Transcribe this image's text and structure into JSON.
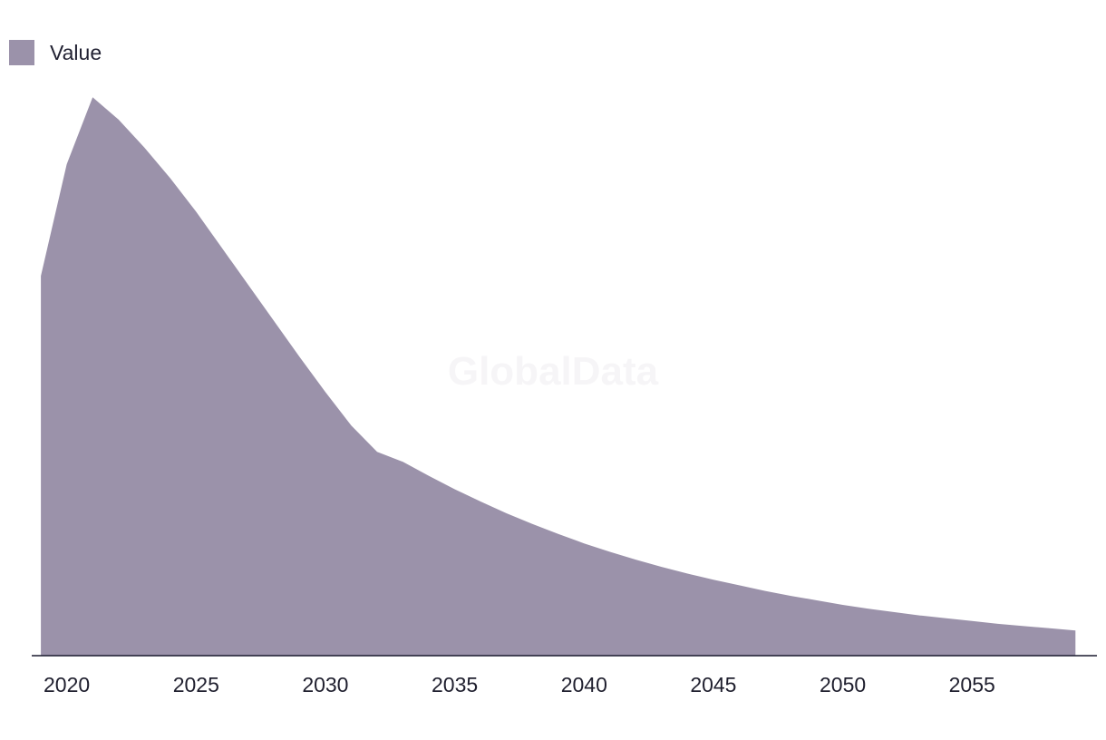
{
  "chart_data": {
    "type": "area",
    "series": [
      {
        "name": "Value",
        "color": "#9b92aa",
        "x": [
          2019,
          2020,
          2021,
          2022,
          2023,
          2024,
          2025,
          2026,
          2027,
          2028,
          2029,
          2030,
          2031,
          2032,
          2033,
          2034,
          2035,
          2036,
          2037,
          2038,
          2039,
          2040,
          2041,
          2042,
          2043,
          2044,
          2045,
          2046,
          2047,
          2048,
          2049,
          2050,
          2051,
          2052,
          2053,
          2054,
          2055,
          2056,
          2057,
          2058,
          2059
        ],
        "values": [
          68,
          88,
          100,
          96,
          91,
          85.5,
          79.5,
          73,
          66.5,
          60,
          53.5,
          47.2,
          41.2,
          36.5,
          34.7,
          32.2,
          29.8,
          27.6,
          25.5,
          23.6,
          21.8,
          20.1,
          18.6,
          17.2,
          15.9,
          14.7,
          13.6,
          12.6,
          11.6,
          10.7,
          9.9,
          9.1,
          8.4,
          7.8,
          7.2,
          6.7,
          6.2,
          5.7,
          5.3,
          4.9,
          4.5
        ]
      }
    ],
    "x_ticks": [
      2020,
      2025,
      2030,
      2035,
      2040,
      2045,
      2050,
      2055
    ],
    "xlim": [
      2018.4,
      2059.9
    ],
    "ylim": [
      0,
      101
    ],
    "legend": "top-left",
    "grid": false,
    "watermark": "GlobalData"
  }
}
